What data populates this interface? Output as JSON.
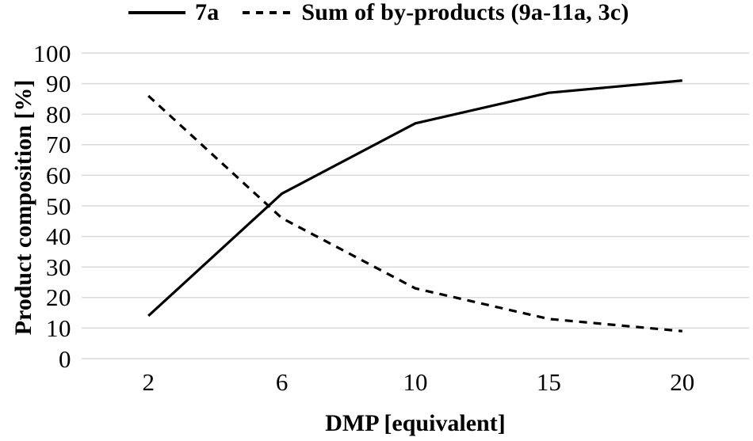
{
  "legend": {
    "items": [
      {
        "label": "7a",
        "line_style": "solid"
      },
      {
        "label": "Sum of by-products (9a-11a, 3c)",
        "line_style": "dashed"
      }
    ]
  },
  "chart_data": {
    "type": "line",
    "title": "",
    "xlabel": "DMP [equivalent]",
    "ylabel": "Product composition [%]",
    "categories": [
      "2",
      "6",
      "10",
      "15",
      "20"
    ],
    "series": [
      {
        "name": "7a",
        "line_style": "solid",
        "values": [
          14,
          54,
          77,
          87,
          91
        ]
      },
      {
        "name": "Sum of by-products (9a-11a, 3c)",
        "line_style": "dashed",
        "values": [
          86,
          46,
          23,
          13,
          9
        ]
      }
    ],
    "ylim": [
      0,
      100
    ],
    "yticks": [
      0,
      10,
      20,
      30,
      40,
      50,
      60,
      70,
      80,
      90,
      100
    ],
    "grid": "horizontal",
    "legend_position": "top",
    "line_color": "#000000",
    "gridline_color": "#d9d9d9"
  }
}
